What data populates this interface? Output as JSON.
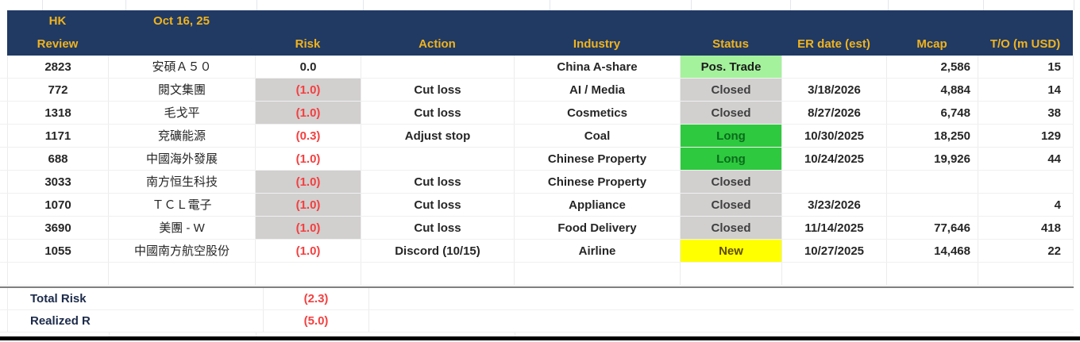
{
  "title": {
    "line1": "HK",
    "line2": "Review",
    "date": "Oct 16, 25"
  },
  "columns": {
    "risk": "Risk",
    "action": "Action",
    "industry": "Industry",
    "status": "Status",
    "er_date": "ER date (est)",
    "mcap": "Mcap",
    "turnover": "T/O (m USD)"
  },
  "rows": [
    {
      "code": "2823",
      "name": "安碩Ａ５０",
      "risk": "0.0",
      "risk_shaded": false,
      "risk_red": false,
      "action": "",
      "industry": "China A-share",
      "status": "Pos. Trade",
      "status_style": "pos-trade",
      "er_date": "",
      "mcap": "2,586",
      "turnover": "15"
    },
    {
      "code": "772",
      "name": "閱文集團",
      "risk": "(1.0)",
      "risk_shaded": true,
      "risk_red": true,
      "action": "Cut loss",
      "industry": "AI / Media",
      "status": "Closed",
      "status_style": "closed",
      "er_date": "3/18/2026",
      "mcap": "4,884",
      "turnover": "14"
    },
    {
      "code": "1318",
      "name": "毛戈平",
      "risk": "(1.0)",
      "risk_shaded": true,
      "risk_red": true,
      "action": "Cut loss",
      "industry": "Cosmetics",
      "status": "Closed",
      "status_style": "closed",
      "er_date": "8/27/2026",
      "mcap": "6,748",
      "turnover": "38"
    },
    {
      "code": "1171",
      "name": "兗礦能源",
      "risk": "(0.3)",
      "risk_shaded": false,
      "risk_red": true,
      "action": "Adjust stop",
      "industry": "Coal",
      "status": "Long",
      "status_style": "long",
      "er_date": "10/30/2025",
      "mcap": "18,250",
      "turnover": "129"
    },
    {
      "code": "688",
      "name": "中國海外發展",
      "risk": "(1.0)",
      "risk_shaded": false,
      "risk_red": true,
      "action": "",
      "industry": "Chinese Property",
      "status": "Long",
      "status_style": "long",
      "er_date": "10/24/2025",
      "mcap": "19,926",
      "turnover": "44"
    },
    {
      "code": "3033",
      "name": "南方恒生科技",
      "risk": "(1.0)",
      "risk_shaded": true,
      "risk_red": true,
      "action": "Cut loss",
      "industry": "Chinese Property",
      "status": "Closed",
      "status_style": "closed",
      "er_date": "",
      "mcap": "",
      "turnover": ""
    },
    {
      "code": "1070",
      "name": "ＴＣＬ電子",
      "risk": "(1.0)",
      "risk_shaded": true,
      "risk_red": true,
      "action": "Cut loss",
      "industry": "Appliance",
      "status": "Closed",
      "status_style": "closed",
      "er_date": "3/23/2026",
      "mcap": "",
      "turnover": "4"
    },
    {
      "code": "3690",
      "name": "美團 - W",
      "risk": "(1.0)",
      "risk_shaded": true,
      "risk_red": true,
      "action": "Cut loss",
      "industry": "Food Delivery",
      "status": "Closed",
      "status_style": "closed",
      "er_date": "11/14/2025",
      "mcap": "77,646",
      "turnover": "418"
    },
    {
      "code": "1055",
      "name": "中國南方航空股份",
      "risk": "(1.0)",
      "risk_shaded": false,
      "risk_red": true,
      "action": "Discord (10/15)",
      "industry": "Airline",
      "status": "New",
      "status_style": "new",
      "er_date": "10/27/2025",
      "mcap": "14,468",
      "turnover": "22"
    },
    {
      "code": "",
      "name": "",
      "risk": "",
      "risk_shaded": false,
      "risk_red": false,
      "action": "",
      "industry": "",
      "status": "",
      "status_style": "",
      "er_date": "",
      "mcap": "",
      "turnover": ""
    }
  ],
  "totals": [
    {
      "label": "Total Risk",
      "value": "(2.3)"
    },
    {
      "label": "Realized R",
      "value": "(5.0)"
    }
  ],
  "colors": {
    "navy": "#203a64",
    "gold": "#f2b31b",
    "red": "#f43f3f",
    "gray_cell": "#d2cfcf",
    "green_light": "#a4f29c",
    "green_bright": "#2ec93e",
    "green_text": "#0b6b1d",
    "yellow": "#ffff00",
    "yellow_text": "#5f4d00"
  }
}
